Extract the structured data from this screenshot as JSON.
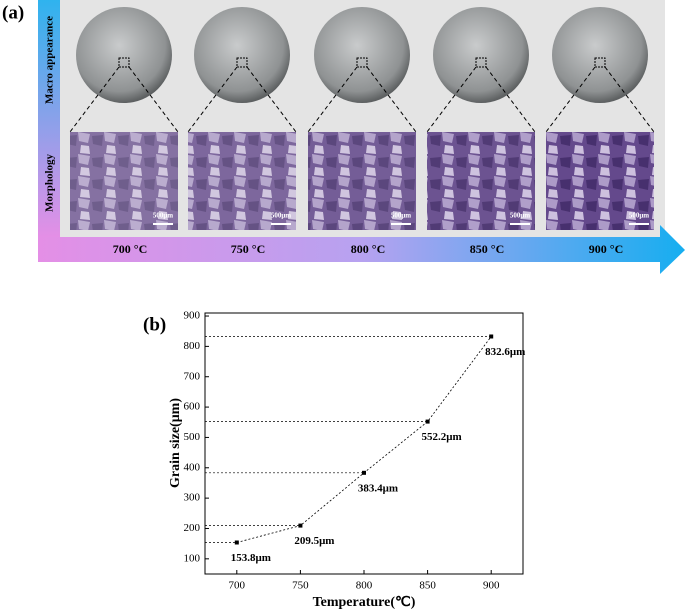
{
  "panel_a": {
    "label": "(a)",
    "row_labels": [
      "Macro appearance",
      "Morphology"
    ],
    "scale_bar": "500μm",
    "temperatures": [
      "700 °C",
      "750 °C",
      "800 °C",
      "850 °C",
      "900 °C"
    ]
  },
  "chart_data": {
    "type": "line",
    "panel_label": "(b)",
    "x_label": "Temperature(℃)",
    "y_label": "Grain size(μm)",
    "x": [
      700,
      750,
      800,
      850,
      900
    ],
    "values": [
      153.8,
      209.5,
      383.4,
      552.2,
      832.6
    ],
    "value_labels": [
      "153.8μm",
      "209.5μm",
      "383.4μm",
      "552.2μm",
      "832.6μm"
    ],
    "color": "#000000",
    "xlim": [
      675,
      925
    ],
    "ylim": [
      50,
      910
    ],
    "xticks": [
      700,
      750,
      800,
      850,
      900
    ],
    "yticks": [
      100,
      200,
      300,
      400,
      500,
      600,
      700,
      800,
      900
    ]
  }
}
